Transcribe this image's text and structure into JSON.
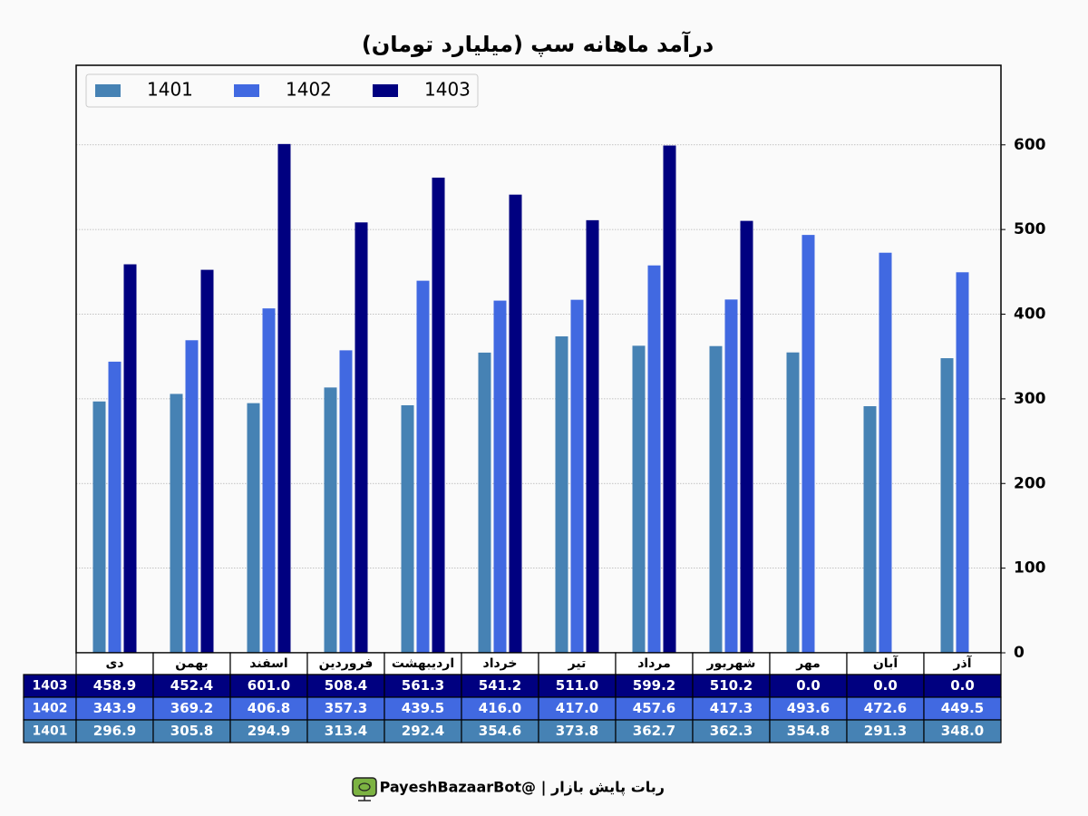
{
  "chart_data": {
    "type": "bar",
    "title": "درآمد ماهانه سپ (میلیارد تومان)",
    "categories": [
      "دی",
      "بهمن",
      "اسفند",
      "فروردین",
      "اردیبهشت",
      "خرداد",
      "تیر",
      "مرداد",
      "شهریور",
      "مهر",
      "آبان",
      "آذر"
    ],
    "series": [
      {
        "name": "1401",
        "color": "#4682b4",
        "values": [
          296.9,
          305.8,
          294.9,
          313.4,
          292.4,
          354.6,
          373.8,
          362.7,
          362.3,
          354.8,
          291.3,
          348.0
        ],
        "value_labels": [
          "296.9",
          "305.8",
          "294.9",
          "313.4",
          "292.4",
          "354.6",
          "373.8",
          "362.7",
          "362.3",
          "354.8",
          "291.3",
          "348.0"
        ]
      },
      {
        "name": "1402",
        "color": "#4169e1",
        "values": [
          343.9,
          369.2,
          406.8,
          357.3,
          439.5,
          416.0,
          417.0,
          457.6,
          417.3,
          493.6,
          472.6,
          449.5
        ],
        "value_labels": [
          "343.9",
          "369.2",
          "406.8",
          "357.3",
          "439.5",
          "416.0",
          "417.0",
          "457.6",
          "417.3",
          "493.6",
          "472.6",
          "449.5"
        ]
      },
      {
        "name": "1403",
        "color": "#000080",
        "values": [
          458.9,
          452.4,
          601.0,
          508.4,
          561.3,
          541.2,
          511.0,
          599.2,
          510.2,
          0.0,
          0.0,
          0.0
        ],
        "value_labels": [
          "458.9",
          "452.4",
          "601.0",
          "508.4",
          "561.3",
          "541.2",
          "511.0",
          "599.2",
          "510.2",
          "0.0",
          "0.0",
          "0.0"
        ]
      }
    ],
    "ylim": [
      0,
      694
    ],
    "yticks": [
      0,
      100,
      200,
      300,
      400,
      500,
      600
    ],
    "grid": true,
    "legend": "upper left"
  },
  "footer": "ربات پایش بازار  |  @PayeshBazaarBot"
}
